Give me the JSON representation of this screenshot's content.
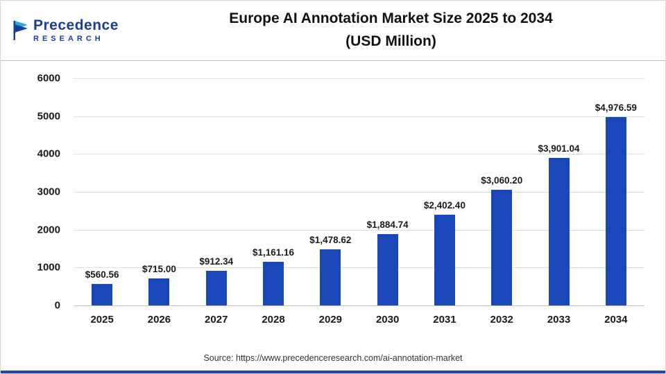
{
  "header": {
    "logo": {
      "line1": "Precedence",
      "line2": "RESEARCH"
    },
    "title_line1": "Europe AI Annotation Market Size 2025 to 2034",
    "title_line2": "(USD Million)"
  },
  "chart_data": {
    "type": "bar",
    "title": "Europe AI Annotation Market Size 2025 to 2034 (USD Million)",
    "categories": [
      "2025",
      "2026",
      "2027",
      "2028",
      "2029",
      "2030",
      "2031",
      "2032",
      "2033",
      "2034"
    ],
    "values": [
      560.56,
      715.0,
      912.34,
      1161.16,
      1478.62,
      1884.74,
      2402.4,
      3060.2,
      3901.04,
      4976.59
    ],
    "labels": [
      "$560.56",
      "$715.00",
      "$912.34",
      "$1,161.16",
      "$1,478.62",
      "$1,884.74",
      "$2,402.40",
      "$3,060.20",
      "$3,901.04",
      "$4,976.59"
    ],
    "xlabel": "",
    "ylabel": "",
    "ylim": [
      0,
      6000
    ],
    "yticks": [
      0,
      1000,
      2000,
      3000,
      4000,
      5000,
      6000
    ],
    "grid": true,
    "legend": false,
    "bar_color": "#1a47b8"
  },
  "footer": {
    "source": "Source: https://www.precedenceresearch.com/ai-annotation-market"
  },
  "colors": {
    "accent_blue": "#1a47b8",
    "logo_navy": "#1b3e9c",
    "logo_light_blue": "#29abe2",
    "gridline": "#dddddd",
    "text": "#1a1a1a"
  }
}
